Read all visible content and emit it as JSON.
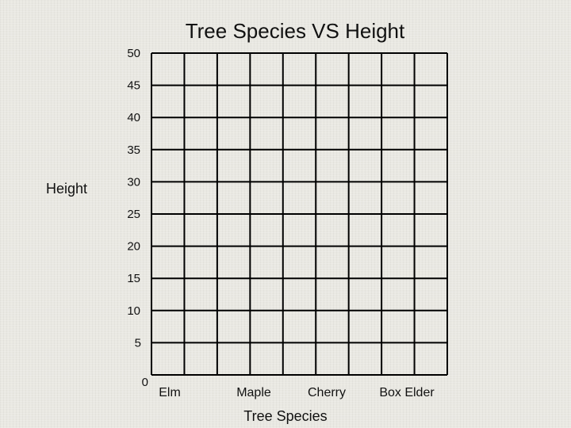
{
  "chart_data": {
    "type": "bar",
    "title": "Tree Species VS Height",
    "xlabel": "Tree Species",
    "ylabel": "Height",
    "categories": [
      "Elm",
      "Maple",
      "Cherry",
      "Box Elder"
    ],
    "yticks": [
      0,
      5,
      10,
      15,
      20,
      25,
      30,
      35,
      40,
      45,
      50
    ],
    "ylim": [
      0,
      50
    ],
    "grid": true,
    "grid_columns": 9,
    "grid_rows": 10,
    "series": []
  }
}
